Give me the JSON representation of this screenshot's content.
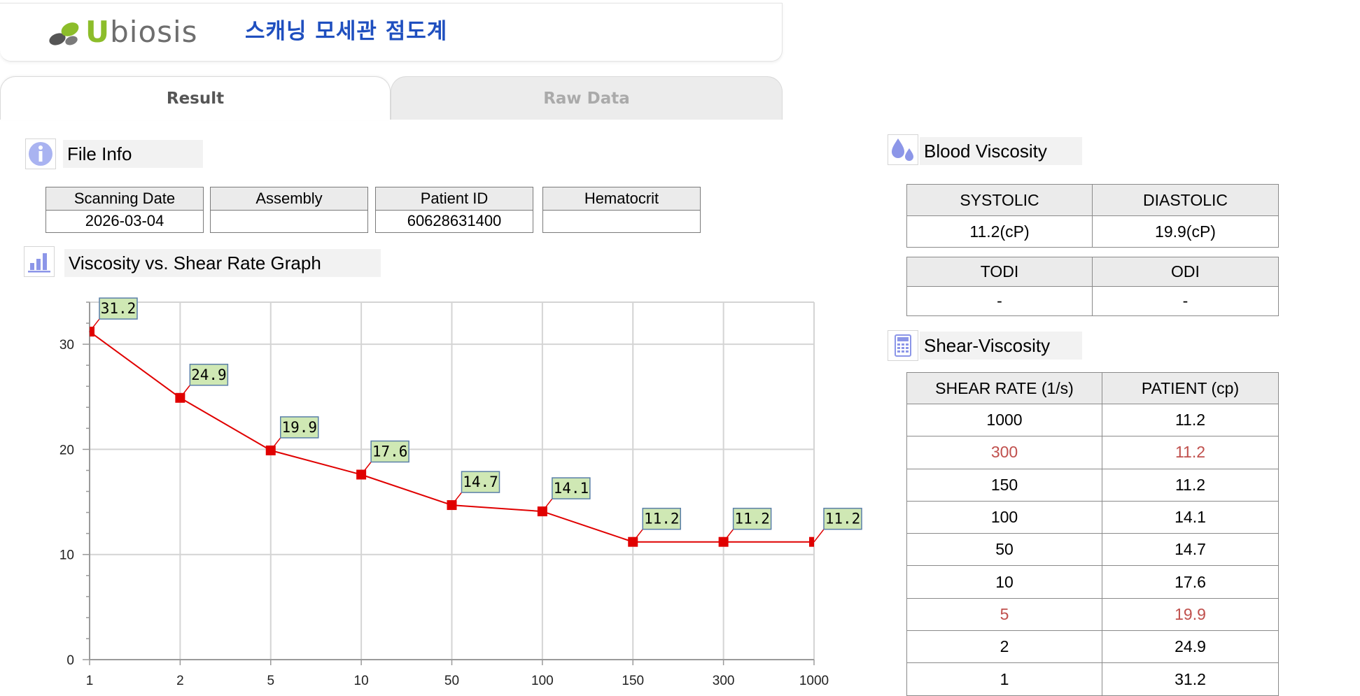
{
  "header": {
    "logo_text_u": "U",
    "logo_text_rest": "biosis",
    "app_title": "스캐닝 모세관 점도계"
  },
  "tabs": [
    {
      "label": "Result",
      "active": true
    },
    {
      "label": "Raw Data",
      "active": false
    }
  ],
  "file_info": {
    "title": "File Info",
    "icon": "info-icon",
    "columns": [
      {
        "header": "Scanning Date",
        "value": "2026-03-04"
      },
      {
        "header": "Assembly",
        "value": ""
      },
      {
        "header": "Patient ID",
        "value": "60628631400"
      },
      {
        "header": "Hematocrit",
        "value": ""
      }
    ]
  },
  "graph": {
    "title": "Viscosity vs. Shear Rate Graph",
    "icon": "bar-chart-icon"
  },
  "blood_viscosity": {
    "title": "Blood Viscosity",
    "icon": "drops-icon",
    "systolic_label": "SYSTOLIC",
    "diastolic_label": "DIASTOLIC",
    "systolic_value": "11.2(cP)",
    "diastolic_value": "19.9(cP)",
    "todi_label": "TODI",
    "odi_label": "ODI",
    "todi_value": "-",
    "odi_value": "-"
  },
  "shear_viscosity": {
    "title": "Shear-Viscosity",
    "icon": "calculator-icon",
    "col_shear": "SHEAR RATE (1/s)",
    "col_patient": "PATIENT (cp)",
    "rows": [
      {
        "shear": "1000",
        "patient": "11.2",
        "highlight": false
      },
      {
        "shear": "300",
        "patient": "11.2",
        "highlight": true
      },
      {
        "shear": "150",
        "patient": "11.2",
        "highlight": false
      },
      {
        "shear": "100",
        "patient": "14.1",
        "highlight": false
      },
      {
        "shear": "50",
        "patient": "14.7",
        "highlight": false
      },
      {
        "shear": "10",
        "patient": "17.6",
        "highlight": false
      },
      {
        "shear": "5",
        "patient": "19.9",
        "highlight": true
      },
      {
        "shear": "2",
        "patient": "24.9",
        "highlight": false
      },
      {
        "shear": "1",
        "patient": "31.2",
        "highlight": false
      }
    ],
    "highlight_color": "#c0504d"
  },
  "chart_data": {
    "type": "line",
    "categories": [
      "1",
      "2",
      "5",
      "10",
      "50",
      "100",
      "150",
      "300",
      "1000"
    ],
    "series": [
      {
        "values": [
          31.2,
          24.9,
          19.9,
          17.6,
          14.7,
          14.1,
          11.2,
          11.2,
          11.2
        ],
        "color": "#e00000"
      }
    ],
    "yticks": [
      "0",
      "10",
      "20",
      "30"
    ],
    "ylim": [
      0,
      34
    ],
    "grid": true,
    "data_labels": true,
    "label_bg": "#cfe8b4"
  }
}
